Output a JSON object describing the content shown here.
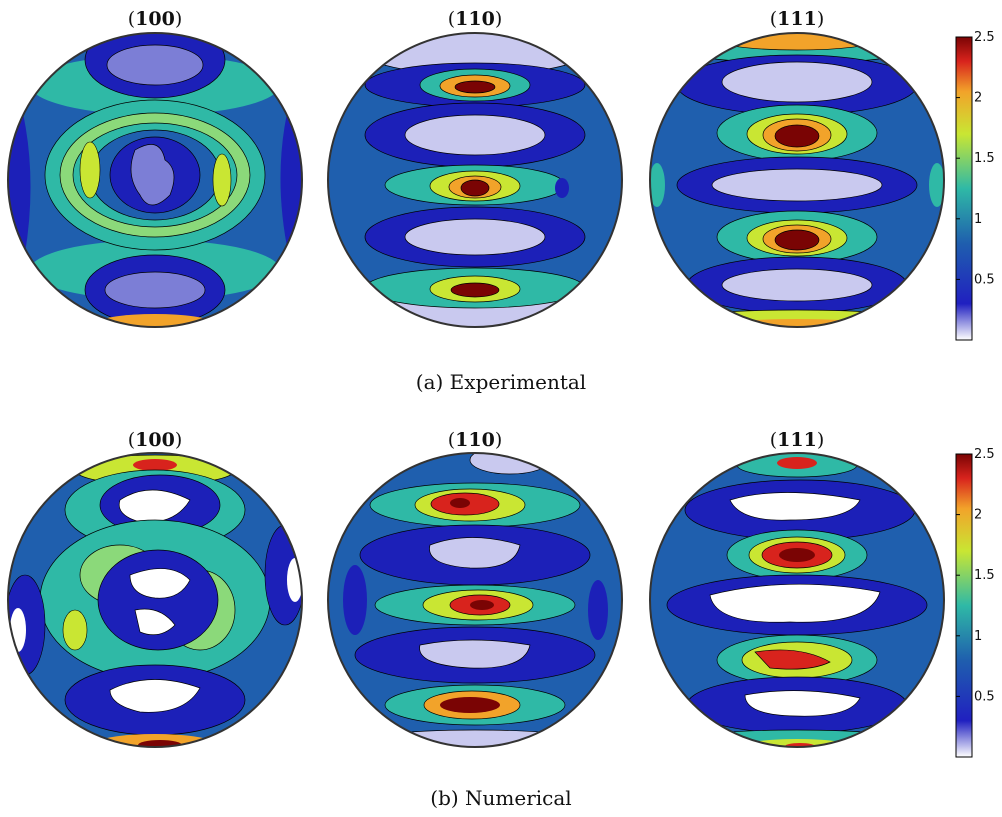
{
  "figure": {
    "rows": [
      {
        "caption": "(a) Experimental",
        "panels": [
          {
            "title_open": "(",
            "title_bold": "100",
            "title_close": ")"
          },
          {
            "title_open": "(",
            "title_bold": "110",
            "title_close": ")"
          },
          {
            "title_open": "(",
            "title_bold": "111",
            "title_close": ")"
          }
        ],
        "colorbar": {
          "ticks": [
            "2.5",
            "2",
            "1.5",
            "1",
            "0.5"
          ],
          "tick_values": [
            2.5,
            2,
            1.5,
            1,
            0.5
          ],
          "range": [
            0,
            2.5
          ]
        }
      },
      {
        "caption": "(b) Numerical",
        "panels": [
          {
            "title_open": "(",
            "title_bold": "100",
            "title_close": ")"
          },
          {
            "title_open": "(",
            "title_bold": "110",
            "title_close": ")"
          },
          {
            "title_open": "(",
            "title_bold": "111",
            "title_close": ")"
          }
        ],
        "colorbar": {
          "ticks": [
            "2.5",
            "2",
            "1.5",
            "1",
            "0.5"
          ],
          "tick_values": [
            2.5,
            2,
            1.5,
            1,
            0.5
          ],
          "range": [
            0,
            2.5
          ]
        }
      }
    ],
    "colormap": [
      "#ffffff",
      "#1c20b8",
      "#1f5fae",
      "#2fb9a6",
      "#c9e633",
      "#f2a32a",
      "#d8231d",
      "#7a0404"
    ],
    "colors": {
      "background_level": "#1f5fae",
      "low": "#c9c9ef",
      "mid": "#2fb9a6",
      "high": "#7a0404"
    }
  }
}
